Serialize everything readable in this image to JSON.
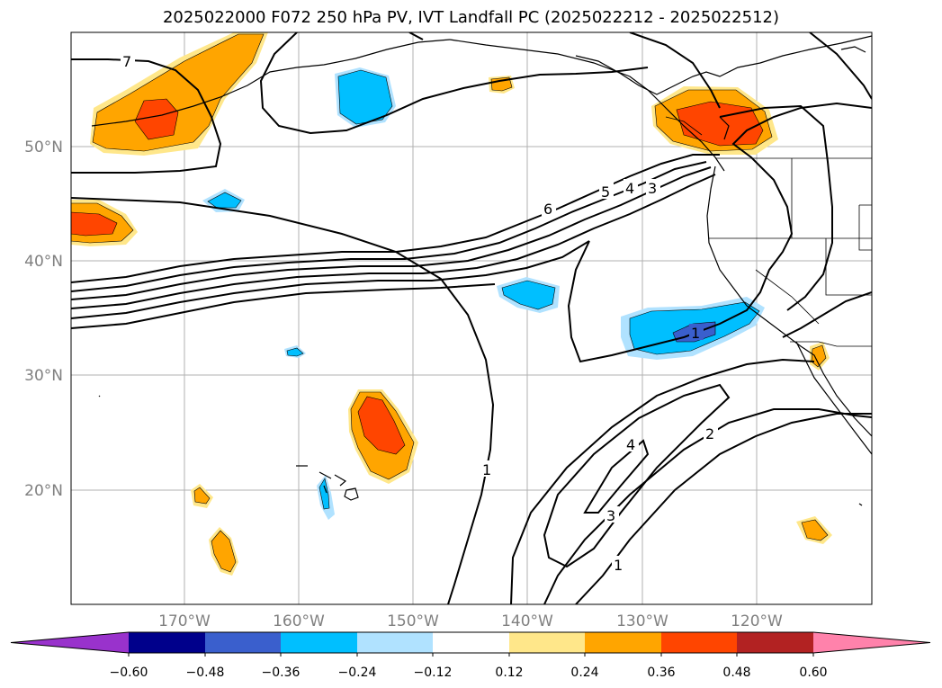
{
  "title": "2025022000 F072 250 hPa PV, IVT Landfall PC (2025022212 - 2025022512)",
  "lat_ticks": [
    "50°N",
    "40°N",
    "30°N",
    "20°N"
  ],
  "lon_ticks": [
    "170°W",
    "160°W",
    "150°W",
    "140°W",
    "130°W",
    "120°W"
  ],
  "colorbar": {
    "labels": [
      "−0.60",
      "−0.48",
      "−0.36",
      "−0.24",
      "−0.12",
      "0.12",
      "0.24",
      "0.36",
      "0.48",
      "0.60"
    ],
    "colors": [
      "#9932cc",
      "#00008b",
      "#3a5fcd",
      "#00bfff",
      "#b0e2ff",
      "#ffffff",
      "#ffe78a",
      "#ffa500",
      "#ff4500",
      "#b22222",
      "#ff82ab"
    ]
  },
  "contour_labels": [
    "7",
    "6",
    "5",
    "4",
    "3",
    "1",
    "1",
    "2",
    "3",
    "4",
    "1"
  ]
}
